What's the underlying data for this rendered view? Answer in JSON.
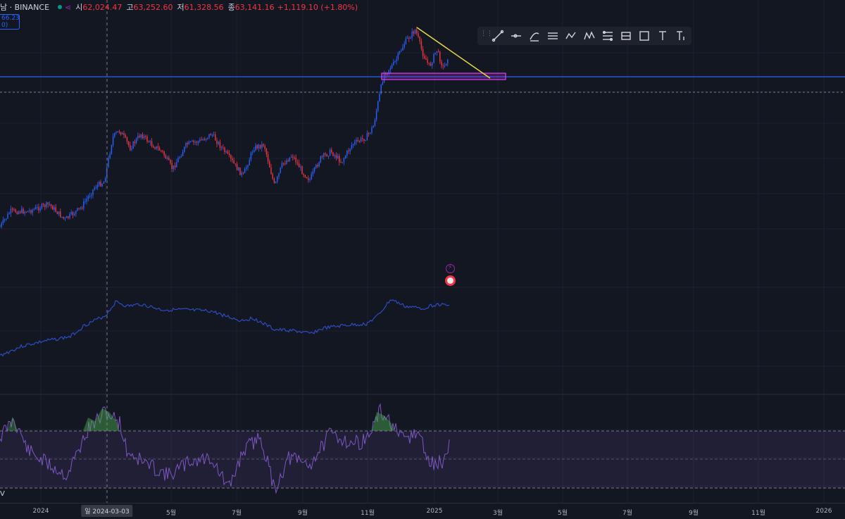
{
  "header": {
    "symbol": "남 · BINANCE",
    "open_label": "시",
    "open_value": "62,024.47",
    "high_label": "고",
    "high_value": "63,252.60",
    "low_label": "저",
    "low_value": "61,328.56",
    "close_label": "종",
    "close_value": "63,141.16",
    "change": "+1,119.10 (+1.80%)",
    "colors": {
      "down": "#f23645",
      "up": "#089981",
      "accent": "#2962ff"
    }
  },
  "price_tag": {
    "line1": "66.23",
    "line2": "0)"
  },
  "drawing_toolbar": {
    "tools": [
      "trend-line-icon",
      "horizontal-ray-icon",
      "curve-icon",
      "parallel-channel-icon",
      "path-icon",
      "xabcd-pattern-icon",
      "fib-retracement-icon",
      "gann-box-icon",
      "rectangle-icon",
      "text-icon",
      "anchored-text-icon"
    ]
  },
  "x_axis": {
    "ticks": [
      "2024",
      "5월",
      "7월",
      "9월",
      "11월",
      "2025",
      "3월",
      "5월",
      "7월",
      "9월",
      "11월",
      "2026"
    ],
    "crosshair_label": "일 2024-03-03"
  },
  "oscillator_label": "V",
  "chart_data": [
    {
      "type": "candlestick",
      "series": [
        {
          "name": "",
          "description_of_shape": []
        }
      ],
      "trend": [
        {
          "date": "2023-12",
          "approx": "low"
        },
        {
          "date": "2024-03",
          "approx": "breakout high"
        },
        {
          "date": "2024-08",
          "approx": "correction low"
        },
        {
          "date": "2024-11",
          "approx": "breakout"
        },
        {
          "date": "2024-12",
          "approx": "all-time high"
        }
      ],
      "annotations": [
        "horizontal blue support line",
        "purple support rectangle",
        "yellow descending trendline"
      ]
    },
    {
      "type": "line",
      "series": [
        {
          "name": ""
        }
      ]
    },
    {
      "type": "line",
      "series": [
        {
          "name": ""
        }
      ],
      "band": "shaded overbought/oversold band"
    }
  ]
}
